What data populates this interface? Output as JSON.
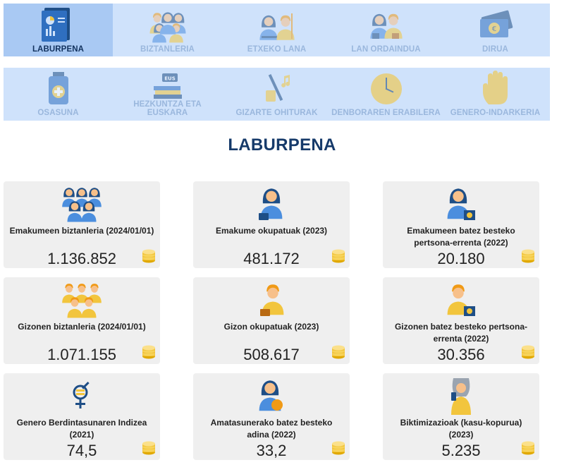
{
  "nav_row1": [
    {
      "label": "LABURPENA",
      "icon": "report-chart-icon",
      "active": true
    },
    {
      "label": "BIZTANLERIA",
      "icon": "population-icon"
    },
    {
      "label": "ETXEKO LANA",
      "icon": "housework-icon"
    },
    {
      "label": "LAN ORDAINDUA",
      "icon": "paid-work-icon"
    },
    {
      "label": "DIRUA",
      "icon": "money-icon"
    }
  ],
  "nav_row2": [
    {
      "label": "OSASUNA",
      "icon": "health-medicine-icon"
    },
    {
      "label": "HEZKUNTZA ETA EUSKARA",
      "icon": "education-books-icon",
      "badge": "EUS"
    },
    {
      "label": "GIZARTE OHITURAK",
      "icon": "social-habits-icon"
    },
    {
      "label": "DENBORAREN ERABILERA",
      "icon": "clock-icon"
    },
    {
      "label": "GENERO-INDARKERIA",
      "icon": "stop-hand-icon"
    }
  ],
  "page_title": "LABURPENA",
  "cards": [
    {
      "label": "Emakumeen biztanleria (2024/01/01)",
      "value": "1.136.852",
      "icon": "women-group-icon"
    },
    {
      "label": "Emakume okupatuak (2023)",
      "value": "481.172",
      "icon": "employed-woman-icon"
    },
    {
      "label": "Emakumeen batez besteko pertsona-errenta (2022)",
      "value": "20.180",
      "icon": "woman-income-icon"
    },
    {
      "label": "Gizonen biztanleria (2024/01/01)",
      "value": "1.071.155",
      "icon": "men-group-icon"
    },
    {
      "label": "Gizon okupatuak (2023)",
      "value": "508.617",
      "icon": "employed-man-icon"
    },
    {
      "label": "Gizonen batez besteko pertsona-errenta (2022)",
      "value": "30.356",
      "icon": "man-income-icon"
    },
    {
      "label": "Genero Berdintasunaren Indizea (2021)",
      "value": "74,5",
      "icon": "gender-symbol-icon"
    },
    {
      "label": "Amatasunerako batez besteko adina (2022)",
      "value": "33,2",
      "icon": "pregnant-woman-icon"
    },
    {
      "label": "Biktimizazioak (kasu-kopurua) (2023)",
      "value": "5.235",
      "icon": "victim-phone-icon"
    }
  ],
  "colors": {
    "nav_bg": "#cfe2fb",
    "nav_active": "#a9c9f3",
    "title": "#163a6a",
    "card_bg": "#efefef",
    "accent_gold": "#f2c53d"
  }
}
